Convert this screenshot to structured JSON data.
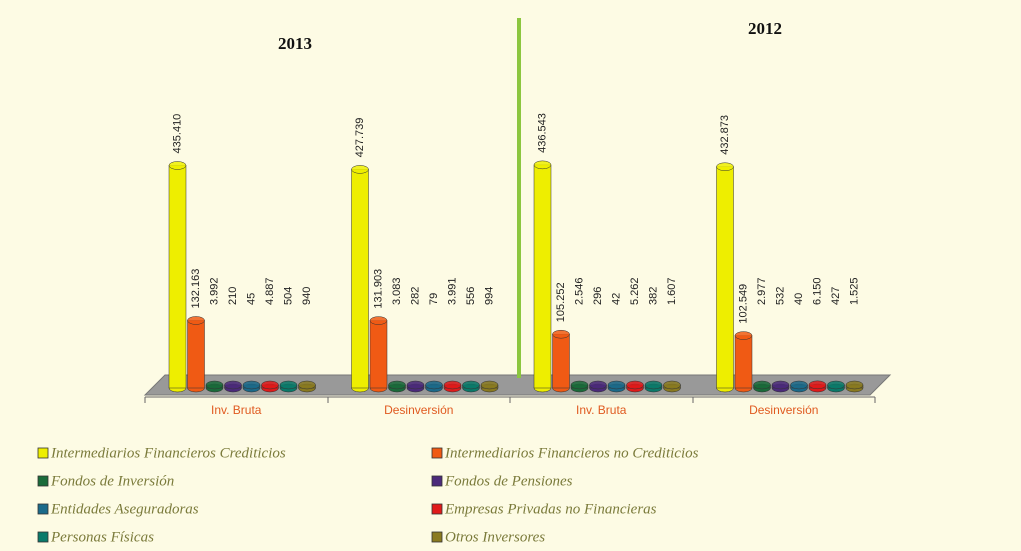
{
  "chart_data": [
    {
      "type": "bar",
      "title": "2013",
      "categories": [
        "Inv. Bruta",
        "Desinversión"
      ],
      "ylim": [
        0,
        450000
      ],
      "series": [
        {
          "name": "Intermediarios Financieros Crediticios",
          "color": "#eeee00",
          "values": [
            435410,
            427739
          ],
          "value_labels": [
            "435.410",
            "427.739"
          ]
        },
        {
          "name": "Intermediarios Financieros no Crediticios",
          "color": "#f05a14",
          "values": [
            132163,
            131903
          ],
          "value_labels": [
            "132.163",
            "131.903"
          ]
        },
        {
          "name": "Fondos de Inversión",
          "color": "#1a6b3a",
          "values": [
            3992,
            3083
          ],
          "value_labels": [
            "3.992",
            "3.083"
          ]
        },
        {
          "name": "Fondos de Pensiones",
          "color": "#4b2a7a",
          "values": [
            210,
            282
          ]
        },
        {
          "name": "Entidades Aseguradoras",
          "color": "#1b6a8a",
          "values": [
            45,
            79
          ]
        },
        {
          "name": "Empresas Privadas no Financieras",
          "color": "#e01a1a",
          "values": [
            4887,
            3991
          ],
          "value_labels": [
            "4.887",
            "3.991"
          ]
        },
        {
          "name": "Personas Físicas",
          "color": "#0a7a6a",
          "values": [
            504,
            556
          ]
        },
        {
          "name": "Otros Inversores",
          "color": "#8a7a20",
          "values": [
            940,
            994
          ]
        }
      ]
    },
    {
      "type": "bar",
      "title": "2012",
      "categories": [
        "Inv. Bruta",
        "Desinversión"
      ],
      "ylim": [
        0,
        450000
      ],
      "series": [
        {
          "color": "#eeee00",
          "values": [
            436543,
            432873
          ],
          "value_labels": [
            "436.543",
            "432.873"
          ]
        },
        {
          "color": "#f05a14",
          "values": [
            105252,
            102549
          ],
          "value_labels": [
            "105.252",
            "102.549"
          ]
        },
        {
          "color": "#1a6b3a",
          "values": [
            2546,
            2977
          ],
          "value_labels": [
            "2.546",
            "2.977"
          ]
        },
        {
          "color": "#4b2a7a",
          "values": [
            296,
            532
          ]
        },
        {
          "color": "#1b6a8a",
          "values": [
            42,
            40
          ]
        },
        {
          "color": "#e01a1a",
          "values": [
            5262,
            6150
          ],
          "value_labels": [
            "5.262",
            "6.150"
          ]
        },
        {
          "color": "#0a7a6a",
          "values": [
            382,
            427
          ]
        },
        {
          "color": "#8a7a20",
          "values": [
            1607,
            1525
          ],
          "value_labels": [
            "1.607",
            "1.525"
          ]
        }
      ]
    }
  ]
}
